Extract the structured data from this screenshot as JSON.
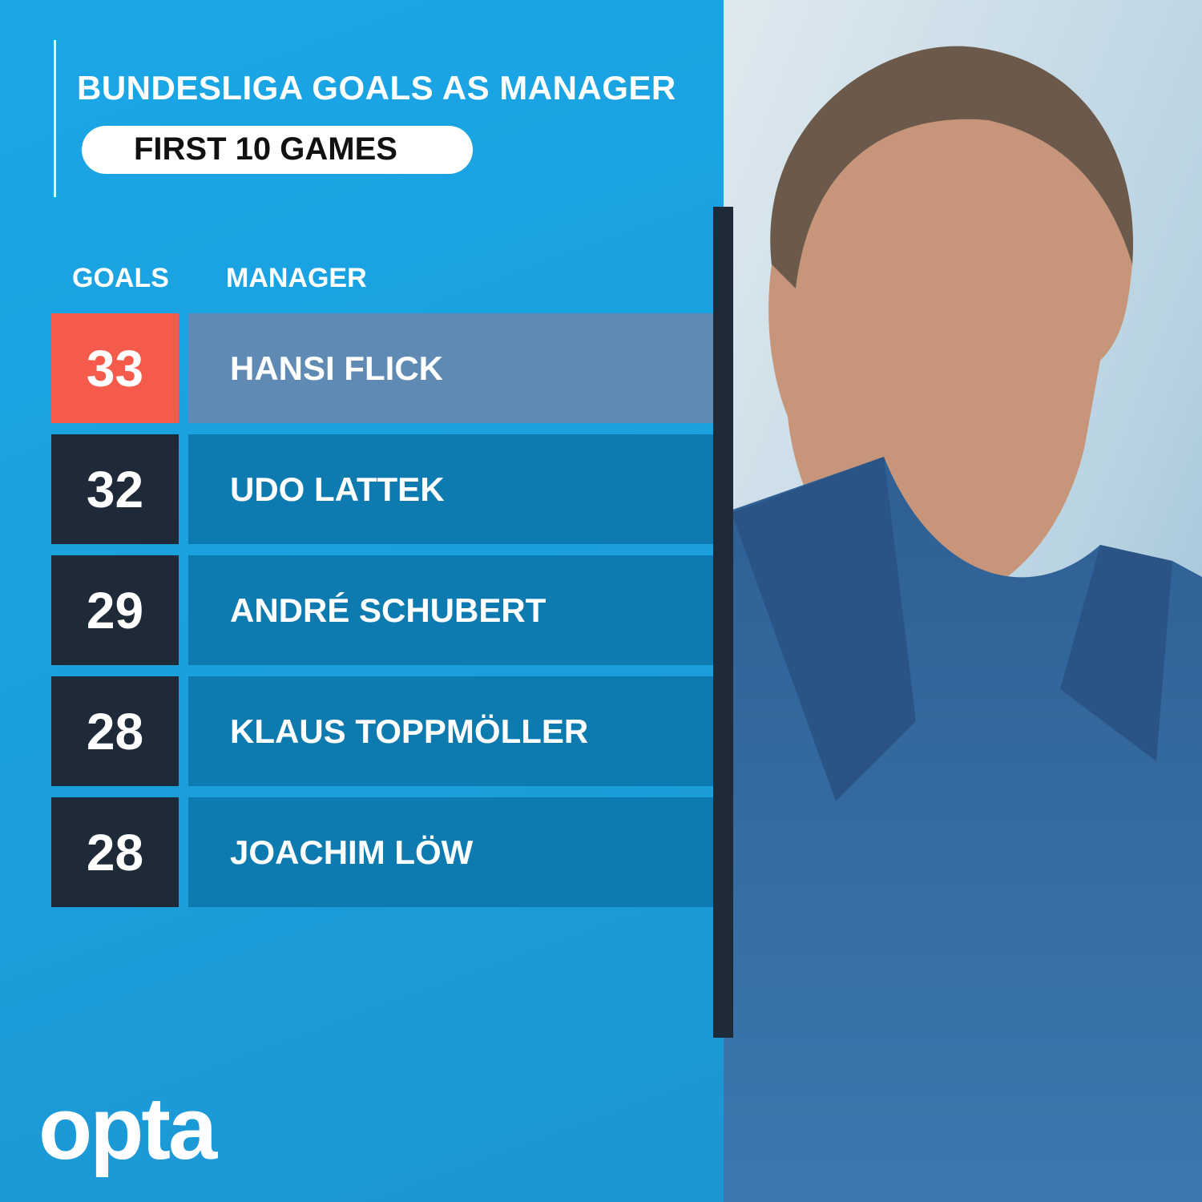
{
  "header": {
    "title": "BUNDESLIGA GOALS AS MANAGER",
    "subtitle": "FIRST 10 GAMES"
  },
  "table": {
    "columns": [
      "GOALS",
      "MANAGER"
    ],
    "rows": [
      [
        33,
        "HANSI FLICK"
      ],
      [
        32,
        "UDO LATTEK"
      ],
      [
        29,
        "ANDRÉ SCHUBERT"
      ],
      [
        28,
        "KLAUS TOPPMÖLLER"
      ],
      [
        28,
        "JOACHIM LÖW"
      ]
    ]
  },
  "logo": "opta"
}
